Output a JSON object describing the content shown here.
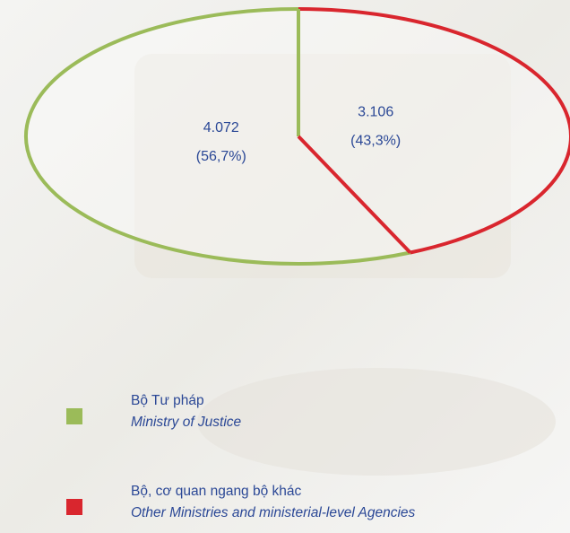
{
  "chart_data": {
    "type": "pie",
    "categories": [
      "Bộ Tư pháp",
      "Bộ, cơ quan ngang bộ khác"
    ],
    "category_translations": [
      "Ministry of Justice",
      "Other Ministries and ministerial-level Agencies"
    ],
    "values": [
      4072,
      3106
    ],
    "value_labels": [
      "4.072",
      "3.106"
    ],
    "percentages": [
      56.7,
      43.3
    ],
    "percentage_labels": [
      "(56,7%)",
      "(43,3%)"
    ],
    "colors": [
      "#9bbb59",
      "#d9262e"
    ]
  }
}
